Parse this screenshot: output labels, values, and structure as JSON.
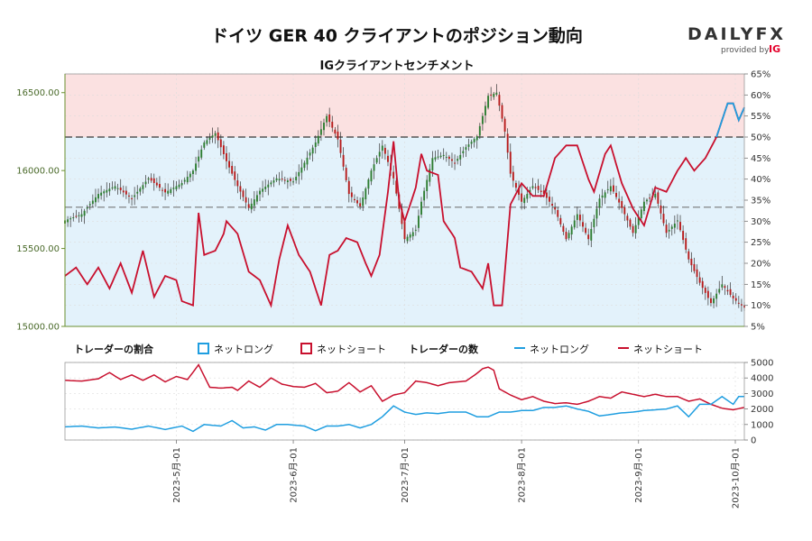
{
  "header": {
    "title": "ドイツ GER 40 クライアントのポジション動向",
    "subtitle": "IGクライアントセンチメント"
  },
  "logo": {
    "brand": "DAILYFX",
    "provided_by": "provided by",
    "ig": "IG"
  },
  "legend": {
    "ratio_title": "トレーダーの割合",
    "net_long": "ネットロング",
    "net_short": "ネットショート",
    "count_title": "トレーダーの数"
  },
  "colors": {
    "long": "#1f9ee0",
    "short": "#c8102e",
    "up_candle": "#2e7d32",
    "down_candle": "#b71c1c",
    "short_zone": "#fbe1e1",
    "long_zone": "#e3f2fb"
  },
  "chart_data": {
    "type": "candlestick+line",
    "x_ticks": [
      "2023-5月-01",
      "2023-6月-01",
      "2023-7月-01",
      "2023-8月-01",
      "2023-9月-01",
      "2023-10月-01"
    ],
    "price_axis": {
      "ticks": [
        "15000.00",
        "15500.00",
        "16000.00",
        "16500.00"
      ],
      "ylim": [
        15000,
        16620
      ]
    },
    "percent_axis": {
      "ticks": [
        "5%",
        "10%",
        "15%",
        "20%",
        "25%",
        "30%",
        "35%",
        "40%",
        "45%",
        "50%",
        "55%",
        "60%",
        "65%"
      ],
      "ylim": [
        5,
        65
      ]
    },
    "count_axis": {
      "ticks": [
        "0",
        "1000",
        "2000",
        "3000",
        "4000",
        "5000"
      ],
      "ylim": [
        0,
        5000
      ]
    },
    "price_keypoints": [
      [
        0,
        15680
      ],
      [
        6,
        15720
      ],
      [
        12,
        15850
      ],
      [
        18,
        15900
      ],
      [
        24,
        15820
      ],
      [
        30,
        15950
      ],
      [
        36,
        15860
      ],
      [
        42,
        15920
      ],
      [
        46,
        16000
      ],
      [
        50,
        16180
      ],
      [
        54,
        16240
      ],
      [
        58,
        16060
      ],
      [
        62,
        15900
      ],
      [
        66,
        15760
      ],
      [
        70,
        15870
      ],
      [
        76,
        15950
      ],
      [
        82,
        15930
      ],
      [
        86,
        16050
      ],
      [
        90,
        16180
      ],
      [
        94,
        16350
      ],
      [
        98,
        16200
      ],
      [
        102,
        15850
      ],
      [
        106,
        15770
      ],
      [
        110,
        16000
      ],
      [
        114,
        16160
      ],
      [
        118,
        15950
      ],
      [
        122,
        15560
      ],
      [
        126,
        15620
      ],
      [
        128,
        15800
      ],
      [
        132,
        16080
      ],
      [
        136,
        16100
      ],
      [
        140,
        16050
      ],
      [
        144,
        16150
      ],
      [
        148,
        16220
      ],
      [
        150,
        16350
      ],
      [
        152,
        16480
      ],
      [
        155,
        16500
      ],
      [
        158,
        16250
      ],
      [
        160,
        15980
      ],
      [
        164,
        15800
      ],
      [
        168,
        15900
      ],
      [
        172,
        15850
      ],
      [
        176,
        15750
      ],
      [
        180,
        15560
      ],
      [
        184,
        15720
      ],
      [
        188,
        15560
      ],
      [
        192,
        15820
      ],
      [
        196,
        15900
      ],
      [
        200,
        15760
      ],
      [
        204,
        15600
      ],
      [
        208,
        15800
      ],
      [
        212,
        15850
      ],
      [
        216,
        15600
      ],
      [
        220,
        15680
      ],
      [
        224,
        15430
      ],
      [
        228,
        15280
      ],
      [
        232,
        15150
      ],
      [
        236,
        15270
      ],
      [
        240,
        15180
      ],
      [
        244,
        15120
      ]
    ],
    "long_pct_keypoints": [
      [
        0,
        17
      ],
      [
        4,
        19
      ],
      [
        8,
        15
      ],
      [
        12,
        19
      ],
      [
        16,
        14
      ],
      [
        20,
        20
      ],
      [
        24,
        13
      ],
      [
        28,
        23
      ],
      [
        32,
        12
      ],
      [
        36,
        17
      ],
      [
        40,
        16
      ],
      [
        42,
        11
      ],
      [
        46,
        10
      ],
      [
        48,
        32
      ],
      [
        50,
        22
      ],
      [
        54,
        23
      ],
      [
        57,
        27
      ],
      [
        58,
        30
      ],
      [
        62,
        27
      ],
      [
        66,
        18
      ],
      [
        70,
        16
      ],
      [
        74,
        10
      ],
      [
        77,
        21
      ],
      [
        80,
        29
      ],
      [
        84,
        22
      ],
      [
        88,
        18
      ],
      [
        92,
        10
      ],
      [
        95,
        22
      ],
      [
        98,
        23
      ],
      [
        101,
        26
      ],
      [
        105,
        25
      ],
      [
        108,
        20
      ],
      [
        110,
        17
      ],
      [
        113,
        22
      ],
      [
        116,
        37
      ],
      [
        118,
        49
      ],
      [
        120,
        35
      ],
      [
        122,
        30
      ],
      [
        126,
        38
      ],
      [
        128,
        46
      ],
      [
        130,
        42
      ],
      [
        134,
        41
      ],
      [
        136,
        30
      ],
      [
        140,
        26
      ],
      [
        142,
        19
      ],
      [
        146,
        18
      ],
      [
        150,
        14
      ],
      [
        152,
        20
      ],
      [
        154,
        10
      ],
      [
        157,
        10
      ],
      [
        160,
        34
      ],
      [
        164,
        39
      ],
      [
        168,
        36
      ],
      [
        172,
        36
      ],
      [
        176,
        45
      ],
      [
        180,
        48
      ],
      [
        184,
        48
      ],
      [
        188,
        40
      ],
      [
        190,
        37
      ],
      [
        194,
        46
      ],
      [
        196,
        48
      ],
      [
        200,
        39
      ],
      [
        204,
        33
      ],
      [
        208,
        29
      ],
      [
        212,
        38
      ],
      [
        216,
        37
      ],
      [
        220,
        42
      ],
      [
        223,
        45
      ],
      [
        226,
        42
      ],
      [
        230,
        45
      ],
      [
        234,
        50
      ],
      [
        238,
        58
      ],
      [
        240,
        58
      ],
      [
        242,
        54
      ],
      [
        244,
        57
      ]
    ],
    "long_count_keypoints": [
      [
        0,
        850
      ],
      [
        6,
        900
      ],
      [
        12,
        780
      ],
      [
        18,
        840
      ],
      [
        24,
        700
      ],
      [
        30,
        900
      ],
      [
        36,
        680
      ],
      [
        42,
        900
      ],
      [
        46,
        560
      ],
      [
        50,
        1000
      ],
      [
        56,
        900
      ],
      [
        60,
        1250
      ],
      [
        64,
        780
      ],
      [
        68,
        850
      ],
      [
        72,
        640
      ],
      [
        76,
        1000
      ],
      [
        80,
        1000
      ],
      [
        86,
        900
      ],
      [
        90,
        600
      ],
      [
        94,
        900
      ],
      [
        98,
        900
      ],
      [
        102,
        1000
      ],
      [
        106,
        780
      ],
      [
        110,
        1000
      ],
      [
        114,
        1500
      ],
      [
        118,
        2200
      ],
      [
        122,
        1800
      ],
      [
        126,
        1650
      ],
      [
        130,
        1750
      ],
      [
        134,
        1700
      ],
      [
        138,
        1800
      ],
      [
        144,
        1800
      ],
      [
        148,
        1500
      ],
      [
        152,
        1500
      ],
      [
        156,
        1800
      ],
      [
        160,
        1800
      ],
      [
        164,
        1900
      ],
      [
        168,
        1900
      ],
      [
        172,
        2100
      ],
      [
        176,
        2100
      ],
      [
        180,
        2200
      ],
      [
        184,
        2000
      ],
      [
        188,
        1850
      ],
      [
        192,
        1550
      ],
      [
        196,
        1650
      ],
      [
        200,
        1750
      ],
      [
        204,
        1800
      ],
      [
        208,
        1900
      ],
      [
        212,
        1950
      ],
      [
        216,
        2000
      ],
      [
        220,
        2200
      ],
      [
        224,
        1500
      ],
      [
        228,
        2300
      ],
      [
        232,
        2300
      ],
      [
        236,
        2800
      ],
      [
        240,
        2300
      ],
      [
        242,
        2800
      ],
      [
        244,
        2800
      ]
    ],
    "short_count_keypoints": [
      [
        0,
        3850
      ],
      [
        6,
        3800
      ],
      [
        12,
        3950
      ],
      [
        16,
        4350
      ],
      [
        20,
        3900
      ],
      [
        24,
        4200
      ],
      [
        28,
        3850
      ],
      [
        32,
        4200
      ],
      [
        36,
        3750
      ],
      [
        40,
        4100
      ],
      [
        44,
        3900
      ],
      [
        48,
        4850
      ],
      [
        52,
        3400
      ],
      [
        56,
        3350
      ],
      [
        60,
        3400
      ],
      [
        62,
        3200
      ],
      [
        66,
        3800
      ],
      [
        70,
        3400
      ],
      [
        74,
        4000
      ],
      [
        78,
        3600
      ],
      [
        82,
        3450
      ],
      [
        86,
        3400
      ],
      [
        90,
        3650
      ],
      [
        94,
        3050
      ],
      [
        98,
        3150
      ],
      [
        102,
        3700
      ],
      [
        106,
        3100
      ],
      [
        110,
        3500
      ],
      [
        114,
        2500
      ],
      [
        118,
        2900
      ],
      [
        122,
        3050
      ],
      [
        126,
        3800
      ],
      [
        130,
        3700
      ],
      [
        134,
        3500
      ],
      [
        138,
        3700
      ],
      [
        144,
        3800
      ],
      [
        148,
        4300
      ],
      [
        150,
        4600
      ],
      [
        152,
        4700
      ],
      [
        154,
        4500
      ],
      [
        156,
        3300
      ],
      [
        160,
        2900
      ],
      [
        164,
        2600
      ],
      [
        168,
        2800
      ],
      [
        172,
        2500
      ],
      [
        176,
        2350
      ],
      [
        180,
        2400
      ],
      [
        184,
        2300
      ],
      [
        188,
        2500
      ],
      [
        192,
        2800
      ],
      [
        196,
        2700
      ],
      [
        200,
        3100
      ],
      [
        204,
        2950
      ],
      [
        208,
        2800
      ],
      [
        212,
        2950
      ],
      [
        216,
        2800
      ],
      [
        220,
        2800
      ],
      [
        224,
        2500
      ],
      [
        228,
        2650
      ],
      [
        232,
        2300
      ],
      [
        236,
        2050
      ],
      [
        240,
        1950
      ],
      [
        244,
        2100
      ]
    ],
    "x_span": 245
  }
}
